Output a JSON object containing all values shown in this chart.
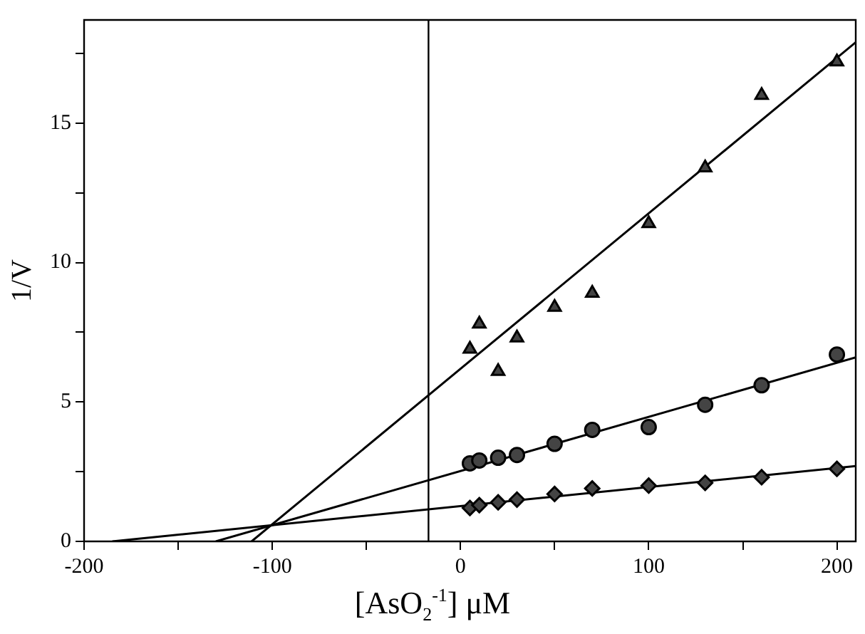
{
  "chart_data": {
    "type": "scatter",
    "xlabel": "[AsO$_{2}$$^{-1}$] μM",
    "ylabel": "1/V",
    "xlim": [
      -200,
      210
    ],
    "ylim": [
      0,
      18.7
    ],
    "xticks": [
      -200,
      {
        "value": -150,
        "label": null
      },
      -100,
      {
        "value": -50,
        "label": null
      },
      0,
      {
        "value": 50,
        "label": null
      },
      100,
      {
        "value": 150,
        "label": null
      },
      200
    ],
    "yticks": [
      0,
      {
        "value": 2.5,
        "label": null
      },
      5,
      {
        "value": 7.5,
        "label": null
      },
      10,
      {
        "value": 12.5,
        "label": null
      },
      15,
      {
        "value": 17.5,
        "label": null
      }
    ],
    "grid": false,
    "legend": false,
    "series": [
      {
        "color": "#444444",
        "marker": "triangle",
        "x": [
          5,
          10,
          20,
          30,
          50,
          70,
          100,
          130,
          160,
          200
        ],
        "values": [
          6.9,
          7.8,
          6.1,
          7.3,
          8.4,
          8.9,
          11.4,
          13.4,
          16.0,
          17.2
        ]
      },
      {
        "color": "#444444",
        "marker": "circle",
        "x": [
          5,
          10,
          20,
          30,
          50,
          70,
          100,
          130,
          160,
          200
        ],
        "values": [
          2.8,
          2.9,
          3.0,
          3.1,
          3.5,
          4.0,
          4.1,
          4.9,
          5.6,
          6.7
        ]
      },
      {
        "color": "#444444",
        "marker": "diamond",
        "x": [
          5,
          10,
          20,
          30,
          50,
          70,
          100,
          130,
          160,
          200
        ],
        "values": [
          1.2,
          1.3,
          1.4,
          1.5,
          1.7,
          1.9,
          2.0,
          2.1,
          2.3,
          2.6
        ]
      },
      {
        "type": "line",
        "color": "#000000",
        "marker": "none",
        "x": [
          -111,
          210
        ],
        "values": [
          0,
          17.9
        ]
      },
      {
        "type": "line",
        "color": "#000000",
        "marker": "none",
        "x": [
          -130,
          210
        ],
        "values": [
          0,
          6.6
        ]
      },
      {
        "type": "line",
        "color": "#000000",
        "marker": "none",
        "x": [
          -185,
          210
        ],
        "values": [
          0,
          2.7
        ]
      }
    ],
    "ref_lines": [
      {
        "axis": "x",
        "value": -17,
        "color": "#000000"
      }
    ]
  }
}
